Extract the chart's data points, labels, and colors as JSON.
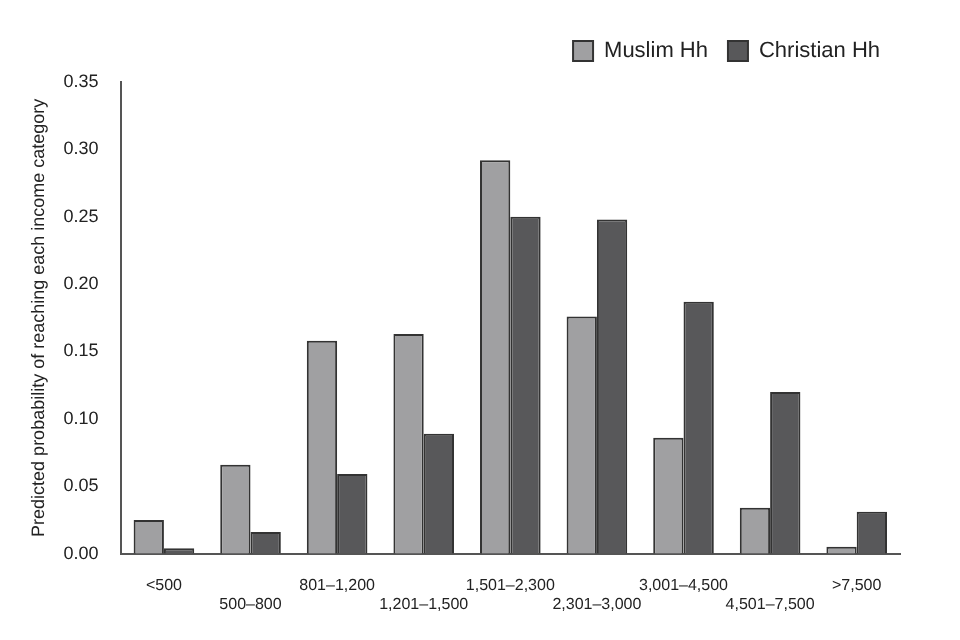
{
  "chart_data": {
    "type": "bar",
    "ylabel": "Predicted probability of reaching each income category",
    "categories": [
      "<500",
      "500–800",
      "801–1,200",
      "1,201–1,500",
      "1,501–2,300",
      "2,301–3,000",
      "3,001–4,500",
      "4,501–7,500",
      ">7,500"
    ],
    "series": [
      {
        "name": "Muslim Hh",
        "color": "#a0a0a2",
        "values": [
          0.025,
          0.066,
          0.158,
          0.163,
          0.292,
          0.176,
          0.086,
          0.034,
          0.005
        ]
      },
      {
        "name": "Christian Hh",
        "color": "#58585a",
        "values": [
          0.004,
          0.016,
          0.059,
          0.089,
          0.25,
          0.248,
          0.187,
          0.12,
          0.031
        ]
      }
    ],
    "ylim": [
      0,
      0.35
    ],
    "yticks": [
      {
        "value": 0,
        "label": "0.00"
      },
      {
        "value": 0.05,
        "label": "0.05"
      },
      {
        "value": 0.1,
        "label": "0.10"
      },
      {
        "value": 0.15,
        "label": "0.15"
      },
      {
        "value": 0.2,
        "label": "0.20"
      },
      {
        "value": 0.25,
        "label": "0.25"
      },
      {
        "value": 0.3,
        "label": "0.30"
      },
      {
        "value": 0.35,
        "label": "0.35"
      }
    ],
    "grid": false,
    "legend": "top right"
  }
}
